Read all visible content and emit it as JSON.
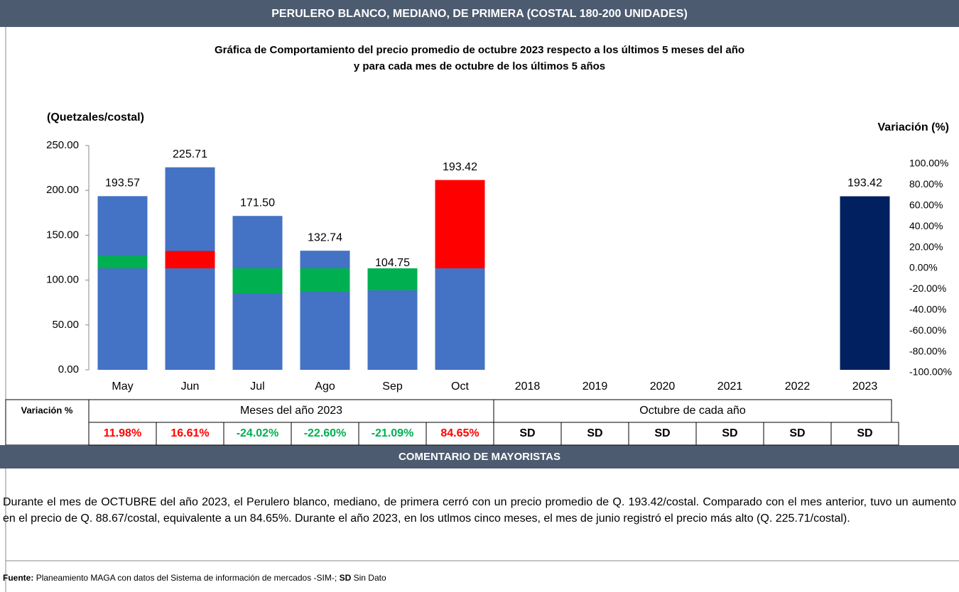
{
  "header": {
    "title": "PERULERO BLANCO, MEDIANO, DE PRIMERA (COSTAL 180-200 UNIDADES)"
  },
  "chart_data": {
    "type": "bar",
    "title": "Gráfica de Comportamiento del precio promedio de octubre 2023 respecto a los últimos 5 meses del año",
    "subtitle": "y para cada mes de octubre de los últimos 5 años",
    "y_label": "(Quetzales/costal)",
    "y2_label": "Variación (%)",
    "categories": [
      "May",
      "Jun",
      "Jul",
      "Ago",
      "Sep",
      "Oct",
      "2018",
      "2019",
      "2020",
      "2021",
      "2022",
      "2023"
    ],
    "series": [
      {
        "colors": [
          "#4472c4",
          "#4472c4",
          "#4472c4",
          "#4472c4",
          "#4472c4",
          "#4472c4",
          "#4472c4",
          "#4472c4",
          "#4472c4",
          "#4472c4",
          "#4472c4",
          "#002060"
        ],
        "values": [
          193.57,
          225.71,
          171.5,
          132.74,
          104.75,
          193.42,
          null,
          null,
          null,
          null,
          null,
          193.42
        ],
        "value_labels": [
          "193.57",
          "225.71",
          "171.50",
          "132.74",
          "104.75",
          "193.42",
          null,
          null,
          null,
          null,
          null,
          "193.42"
        ]
      },
      {
        "axis": "y2",
        "colors": [
          "#00b050",
          "#ff0000",
          "#00b050",
          "#00b050",
          "#00b050",
          "#ff0000",
          null,
          null,
          null,
          null,
          null,
          null
        ],
        "values": [
          11.98,
          16.61,
          -24.02,
          -22.6,
          -21.09,
          84.65,
          null,
          null,
          null,
          null,
          null,
          null
        ],
        "value_labels": [
          "11.98%",
          "16.61%",
          "-24.02%",
          "-22.60%",
          "-21.09%",
          "84.65%",
          "SD",
          "SD",
          "SD",
          "SD",
          "SD",
          "SD"
        ],
        "value_label_colors": [
          "#ff0000",
          "#ff0000",
          "#00b050",
          "#00b050",
          "#00b050",
          "#ff0000",
          "#000000",
          "#000000",
          "#000000",
          "#000000",
          "#000000",
          "#000000"
        ]
      }
    ],
    "ylim": [
      0,
      250
    ],
    "yticks": [
      {
        "value": 0,
        "label": "0.00"
      },
      {
        "value": 50,
        "label": "50.00"
      },
      {
        "value": 100,
        "label": "100.00"
      },
      {
        "value": 150,
        "label": "150.00"
      },
      {
        "value": 200,
        "label": "200.00"
      },
      {
        "value": 250,
        "label": "250.00"
      }
    ],
    "y2lim": [
      -100,
      100
    ],
    "y2ticks": [
      {
        "value": -100,
        "label": "-100.00%"
      },
      {
        "value": -80,
        "label": "-80.00%"
      },
      {
        "value": -60,
        "label": "-60.00%"
      },
      {
        "value": -40,
        "label": "-40.00%"
      },
      {
        "value": -20,
        "label": "-20.00%"
      },
      {
        "value": 0,
        "label": "0.00%"
      },
      {
        "value": 20,
        "label": "20.00%"
      },
      {
        "value": 40,
        "label": "40.00%"
      },
      {
        "value": 60,
        "label": "60.00%"
      },
      {
        "value": 80,
        "label": "80.00%"
      },
      {
        "value": 100,
        "label": "100.00%"
      }
    ]
  },
  "table": {
    "row_label": "Variación %",
    "groups": [
      "Meses del año 2023",
      "Octubre de cada año"
    ]
  },
  "comment": {
    "title": "COMENTARIO DE MAYORISTAS",
    "text": "Durante el mes de OCTUBRE del año 2023, el Perulero blanco, mediano, de primera cerró con un precio promedio de Q. 193.42/costal. Comparado con el mes anterior, tuvo un aumento en el precio de Q. 88.67/costal, equivalente a un  84.65%. Durante el año 2023, en los utlmos cinco meses, el mes de junio registró el precio más alto  (Q. 225.71/costal)."
  },
  "source": {
    "label": "Fuente:",
    "text": "Planeamiento MAGA con datos del Sistema de información de mercados -SIM-;",
    "abbr": "SD",
    "abbr_text": "Sin Dato"
  }
}
